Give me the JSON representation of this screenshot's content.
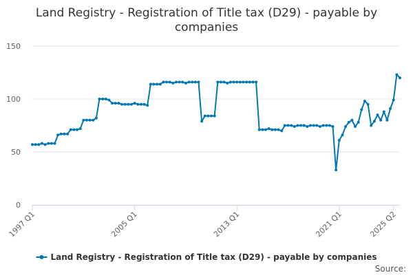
{
  "chart_data": {
    "type": "line",
    "title_lines": [
      "Land Registry - Registration of Title tax (D29) - payable by",
      "companies"
    ],
    "credit": "Source:",
    "x_tick_labels": [
      "1997 Q1",
      "2005 Q1",
      "2013 Q1",
      "2021 Q1",
      "2025 Q2"
    ],
    "x_tick_indices": [
      0,
      32,
      64,
      96,
      113
    ],
    "y_ticks": [
      0,
      50,
      100,
      150
    ],
    "ylim": [
      0,
      150
    ],
    "grid": true,
    "legend_position": "bottom",
    "color": "#0077b3",
    "series": [
      {
        "name": "Land Registry - Registration of Title tax (D29) - payable by companies",
        "values": [
          57,
          57,
          57,
          58,
          57,
          58,
          58,
          58,
          66,
          67,
          67,
          67,
          71,
          71,
          71,
          72,
          80,
          80,
          80,
          80,
          82,
          100,
          100,
          100,
          99,
          96,
          96,
          96,
          95,
          95,
          95,
          95,
          96,
          95,
          95,
          95,
          94,
          114,
          114,
          114,
          114,
          116,
          116,
          116,
          115,
          116,
          116,
          116,
          115,
          116,
          116,
          116,
          116,
          79,
          84,
          84,
          84,
          84,
          116,
          116,
          116,
          115,
          116,
          116,
          116,
          116,
          116,
          116,
          116,
          116,
          116,
          71,
          71,
          71,
          72,
          71,
          71,
          71,
          70,
          75,
          75,
          75,
          74,
          75,
          75,
          75,
          74,
          75,
          75,
          75,
          74,
          75,
          75,
          75,
          74,
          33,
          61,
          66,
          74,
          78,
          80,
          74,
          78,
          90,
          98,
          95,
          75,
          79,
          85,
          80,
          88,
          80,
          91,
          99,
          123,
          120
        ]
      }
    ]
  }
}
